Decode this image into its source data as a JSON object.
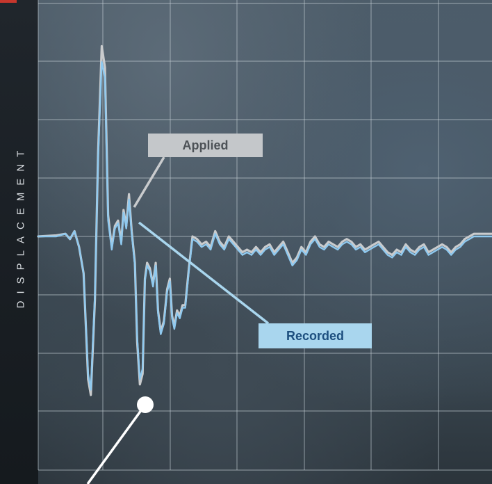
{
  "axis": {
    "ylabel": "DISPLACEMENT"
  },
  "annotations": {
    "applied_label": "Applied",
    "recorded_label": "Recorded"
  },
  "colors": {
    "applied": "#c9cbcd",
    "recorded": "#8fc9ef",
    "grid": "#c3cdd4",
    "accent": "#c7372d"
  },
  "chart_data": {
    "type": "line",
    "title": "",
    "xlabel": "",
    "ylabel": "DISPLACEMENT",
    "grid": true,
    "xlim": [
      0,
      100
    ],
    "ylim": [
      -4,
      4
    ],
    "series": [
      {
        "name": "Applied",
        "x": [
          0,
          4,
          6,
          7,
          8,
          9,
          10,
          11,
          11.6,
          12.5,
          13.2,
          14,
          14.7,
          15.4,
          16.2,
          16.9,
          17.6,
          18.3,
          18.8,
          19.4,
          20,
          20.6,
          21.3,
          21.8,
          22.4,
          23,
          23.5,
          24,
          24.6,
          25.3,
          25.9,
          26.4,
          27,
          27.7,
          28.4,
          29,
          29.5,
          30,
          30.6,
          31.2,
          31.8,
          32.4,
          33.2,
          34,
          35,
          36,
          37,
          38,
          39,
          40,
          41,
          42,
          43,
          44,
          45,
          46,
          47,
          48,
          49,
          50,
          51,
          52,
          53,
          54,
          55,
          56,
          57,
          58,
          59,
          60,
          61,
          62,
          63,
          64,
          65,
          66,
          67,
          68,
          69,
          70,
          71,
          72,
          73,
          74,
          75,
          76,
          77,
          78,
          79,
          80,
          81,
          82,
          83,
          84,
          85,
          86,
          87,
          88,
          89,
          90,
          91,
          92,
          93,
          94,
          95,
          96,
          97,
          98,
          99,
          100
        ],
        "values": [
          0,
          0.02,
          0.05,
          -0.05,
          0.1,
          -0.2,
          -0.7,
          -2.7,
          -3.0,
          -1.2,
          1.6,
          3.6,
          3.2,
          0.4,
          -0.2,
          0.2,
          0.3,
          -0.1,
          0.5,
          0.2,
          0.8,
          0.1,
          -0.5,
          -2.0,
          -2.8,
          -2.6,
          -0.8,
          -0.5,
          -0.6,
          -0.9,
          -0.5,
          -1.4,
          -1.8,
          -1.6,
          -1.0,
          -0.8,
          -1.5,
          -1.7,
          -1.4,
          -1.5,
          -1.3,
          -1.3,
          -0.6,
          0.0,
          -0.05,
          -0.15,
          -0.1,
          -0.2,
          0.1,
          -0.1,
          -0.2,
          0.0,
          -0.1,
          -0.2,
          -0.3,
          -0.25,
          -0.3,
          -0.2,
          -0.3,
          -0.2,
          -0.15,
          -0.3,
          -0.2,
          -0.1,
          -0.3,
          -0.5,
          -0.4,
          -0.2,
          -0.3,
          -0.1,
          0.0,
          -0.15,
          -0.2,
          -0.1,
          -0.15,
          -0.2,
          -0.1,
          -0.05,
          -0.1,
          -0.2,
          -0.15,
          -0.25,
          -0.2,
          -0.15,
          -0.1,
          -0.2,
          -0.3,
          -0.35,
          -0.25,
          -0.3,
          -0.15,
          -0.25,
          -0.3,
          -0.2,
          -0.15,
          -0.3,
          -0.25,
          -0.2,
          -0.15,
          -0.2,
          -0.3,
          -0.2,
          -0.15,
          -0.05,
          0.0,
          0.05,
          0.05,
          0.05,
          0.05,
          0.05
        ]
      },
      {
        "name": "Recorded",
        "x": [
          0,
          4,
          6,
          7,
          8,
          9,
          10,
          11,
          11.6,
          12.5,
          13.2,
          14,
          14.7,
          15.4,
          16.2,
          16.9,
          17.6,
          18.3,
          18.8,
          19.4,
          20,
          20.6,
          21.3,
          21.8,
          22.4,
          23,
          23.5,
          24,
          24.6,
          25.3,
          25.9,
          26.4,
          27,
          27.7,
          28.4,
          29,
          29.5,
          30,
          30.6,
          31.2,
          31.8,
          32.4,
          33.2,
          34,
          35,
          36,
          37,
          38,
          39,
          40,
          41,
          42,
          43,
          44,
          45,
          46,
          47,
          48,
          49,
          50,
          51,
          52,
          53,
          54,
          55,
          56,
          57,
          58,
          59,
          60,
          61,
          62,
          63,
          64,
          65,
          66,
          67,
          68,
          69,
          70,
          71,
          72,
          73,
          74,
          75,
          76,
          77,
          78,
          79,
          80,
          81,
          82,
          83,
          84,
          85,
          86,
          87,
          88,
          89,
          90,
          91,
          92,
          93,
          94,
          95,
          96,
          97,
          98,
          99,
          100
        ],
        "values": [
          0,
          0.0,
          0.05,
          -0.05,
          0.1,
          -0.2,
          -0.7,
          -2.6,
          -2.9,
          -1.1,
          1.5,
          3.3,
          3.0,
          0.3,
          -0.25,
          0.15,
          0.25,
          -0.15,
          0.45,
          0.15,
          0.7,
          0.05,
          -0.55,
          -1.9,
          -2.7,
          -2.5,
          -0.85,
          -0.55,
          -0.65,
          -0.95,
          -0.55,
          -1.45,
          -1.85,
          -1.65,
          -1.05,
          -0.85,
          -1.55,
          -1.75,
          -1.45,
          -1.55,
          -1.35,
          -1.35,
          -0.65,
          -0.05,
          -0.1,
          -0.2,
          -0.15,
          -0.25,
          0.05,
          -0.15,
          -0.25,
          -0.05,
          -0.15,
          -0.25,
          -0.35,
          -0.3,
          -0.35,
          -0.25,
          -0.35,
          -0.25,
          -0.2,
          -0.35,
          -0.25,
          -0.15,
          -0.35,
          -0.55,
          -0.45,
          -0.25,
          -0.35,
          -0.15,
          -0.05,
          -0.2,
          -0.25,
          -0.15,
          -0.2,
          -0.25,
          -0.15,
          -0.1,
          -0.15,
          -0.25,
          -0.2,
          -0.3,
          -0.25,
          -0.2,
          -0.15,
          -0.25,
          -0.35,
          -0.4,
          -0.3,
          -0.35,
          -0.2,
          -0.3,
          -0.35,
          -0.25,
          -0.2,
          -0.35,
          -0.3,
          -0.25,
          -0.2,
          -0.25,
          -0.35,
          -0.25,
          -0.2,
          -0.1,
          -0.05,
          0.0,
          0.0,
          0.0,
          0.0,
          0.0
        ]
      }
    ]
  }
}
